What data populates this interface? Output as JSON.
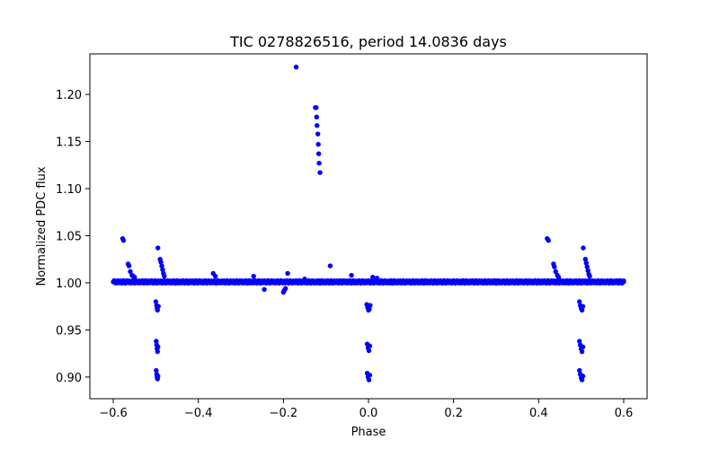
{
  "chart_data": {
    "type": "scatter",
    "title": "TIC 0278826516, period 14.0836 days",
    "xlabel": "Phase",
    "ylabel": "Normalized PDC flux",
    "xlim": [
      -0.655,
      0.655
    ],
    "ylim": [
      0.877,
      1.243
    ],
    "xticks": [
      {
        "value": -0.6,
        "label": "−0.6"
      },
      {
        "value": -0.4,
        "label": "−0.4"
      },
      {
        "value": -0.2,
        "label": "−0.2"
      },
      {
        "value": 0.0,
        "label": "0.0"
      },
      {
        "value": 0.2,
        "label": "0.2"
      },
      {
        "value": 0.4,
        "label": "0.4"
      },
      {
        "value": 0.6,
        "label": "0.6"
      }
    ],
    "yticks": [
      {
        "value": 0.9,
        "label": "0.90"
      },
      {
        "value": 0.95,
        "label": "0.95"
      },
      {
        "value": 1.0,
        "label": "1.00"
      },
      {
        "value": 1.05,
        "label": "1.05"
      },
      {
        "value": 1.1,
        "label": "1.10"
      },
      {
        "value": 1.15,
        "label": "1.15"
      },
      {
        "value": 1.2,
        "label": "1.20"
      }
    ],
    "marker_color": "#0000ff",
    "baseline": {
      "x_start": -0.6,
      "x_end": 0.6,
      "flux": 1.001
    },
    "series": [
      {
        "name": "flux",
        "points": [
          [
            -0.17,
            1.229
          ],
          [
            -0.125,
            1.186
          ],
          [
            -0.123,
            1.186
          ],
          [
            -0.122,
            1.176
          ],
          [
            -0.121,
            1.167
          ],
          [
            -0.119,
            1.158
          ],
          [
            -0.118,
            1.147
          ],
          [
            -0.117,
            1.137
          ],
          [
            -0.116,
            1.127
          ],
          [
            -0.114,
            1.117
          ],
          [
            -0.578,
            1.047
          ],
          [
            -0.576,
            1.045
          ],
          [
            -0.565,
            1.02
          ],
          [
            -0.563,
            1.018
          ],
          [
            -0.56,
            1.012
          ],
          [
            -0.556,
            1.008
          ],
          [
            -0.553,
            1.007
          ],
          [
            -0.55,
            1.006
          ],
          [
            -0.495,
            1.037
          ],
          [
            -0.49,
            1.025
          ],
          [
            -0.488,
            1.022
          ],
          [
            -0.486,
            1.018
          ],
          [
            -0.484,
            1.014
          ],
          [
            -0.482,
            1.01
          ],
          [
            -0.48,
            1.007
          ],
          [
            -0.365,
            1.01
          ],
          [
            -0.36,
            1.007
          ],
          [
            -0.27,
            1.007
          ],
          [
            -0.245,
            0.993
          ],
          [
            -0.19,
            1.01
          ],
          [
            -0.2,
            0.99
          ],
          [
            -0.198,
            0.992
          ],
          [
            -0.195,
            0.994
          ],
          [
            -0.15,
            1.004
          ],
          [
            -0.09,
            1.018
          ],
          [
            -0.04,
            1.008
          ],
          [
            0.01,
            1.006
          ],
          [
            0.02,
            1.005
          ],
          [
            -0.5,
            0.98
          ],
          [
            -0.498,
            0.976
          ],
          [
            -0.497,
            0.973
          ],
          [
            -0.496,
            0.971
          ],
          [
            -0.494,
            0.975
          ],
          [
            -0.499,
            0.938
          ],
          [
            -0.498,
            0.934
          ],
          [
            -0.497,
            0.93
          ],
          [
            -0.496,
            0.927
          ],
          [
            -0.495,
            0.932
          ],
          [
            -0.499,
            0.907
          ],
          [
            -0.498,
            0.903
          ],
          [
            -0.497,
            0.9
          ],
          [
            -0.496,
            0.898
          ],
          [
            -0.495,
            0.901
          ],
          [
            -0.004,
            0.977
          ],
          [
            -0.002,
            0.974
          ],
          [
            0.0,
            0.971
          ],
          [
            0.002,
            0.972
          ],
          [
            0.004,
            0.976
          ],
          [
            -0.003,
            0.935
          ],
          [
            -0.001,
            0.931
          ],
          [
            0.001,
            0.928
          ],
          [
            0.003,
            0.933
          ],
          [
            -0.003,
            0.904
          ],
          [
            -0.001,
            0.9
          ],
          [
            0.001,
            0.897
          ],
          [
            0.003,
            0.902
          ],
          [
            0.42,
            1.047
          ],
          [
            0.423,
            1.045
          ],
          [
            0.435,
            1.02
          ],
          [
            0.437,
            1.017
          ],
          [
            0.44,
            1.012
          ],
          [
            0.444,
            1.008
          ],
          [
            0.447,
            1.006
          ],
          [
            0.505,
            1.037
          ],
          [
            0.51,
            1.025
          ],
          [
            0.512,
            1.021
          ],
          [
            0.514,
            1.017
          ],
          [
            0.516,
            1.013
          ],
          [
            0.518,
            1.009
          ],
          [
            0.52,
            1.007
          ],
          [
            0.496,
            0.98
          ],
          [
            0.498,
            0.976
          ],
          [
            0.5,
            0.973
          ],
          [
            0.502,
            0.971
          ],
          [
            0.504,
            0.975
          ],
          [
            0.496,
            0.938
          ],
          [
            0.498,
            0.934
          ],
          [
            0.5,
            0.93
          ],
          [
            0.502,
            0.927
          ],
          [
            0.504,
            0.932
          ],
          [
            0.496,
            0.907
          ],
          [
            0.498,
            0.903
          ],
          [
            0.5,
            0.899
          ],
          [
            0.502,
            0.897
          ],
          [
            0.504,
            0.901
          ],
          [
            -0.6,
            1.001
          ],
          [
            -0.59,
            1.002
          ],
          [
            0.59,
            1.002
          ],
          [
            0.6,
            1.001
          ]
        ]
      }
    ]
  }
}
